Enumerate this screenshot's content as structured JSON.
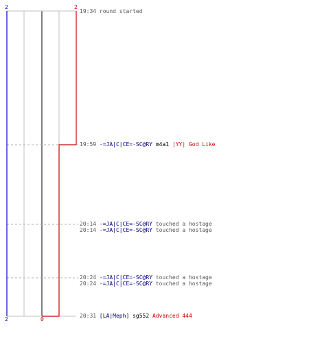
{
  "colors": {
    "team_blue": "#0000cc",
    "team_red": "#cc0000",
    "grid": "#c0c0c0",
    "grid_dark": "#555555",
    "text": "#555555",
    "name_blue": "#000080"
  },
  "scores": {
    "top_left": "2",
    "top_right": "2",
    "bottom_left": "2",
    "bottom_mid": "0"
  },
  "events": [
    {
      "parts": [
        {
          "text": "19:34 ",
          "style": "time"
        },
        {
          "text": "round started",
          "style": "plain"
        }
      ]
    },
    {
      "parts": [
        {
          "text": "19:59 ",
          "style": "time"
        },
        {
          "text": "-=JA|C|CE=-SC@RY",
          "style": "blue"
        },
        {
          "text": " m4a1 ",
          "style": "dark"
        },
        {
          "text": "|YY| God Like",
          "style": "red"
        }
      ]
    },
    {
      "parts": [
        {
          "text": "20:14 ",
          "style": "time"
        },
        {
          "text": "-=JA|C|CE=-SC@RY",
          "style": "blue"
        },
        {
          "text": " touched a hostage",
          "style": "plain"
        }
      ]
    },
    {
      "parts": [
        {
          "text": "20:14 ",
          "style": "time"
        },
        {
          "text": "-=JA|C|CE=-SC@RY",
          "style": "blue"
        },
        {
          "text": " touched a hostage",
          "style": "plain"
        }
      ]
    },
    {
      "parts": [
        {
          "text": "20:24 ",
          "style": "time"
        },
        {
          "text": "-=JA|C|CE=-SC@RY",
          "style": "blue"
        },
        {
          "text": " touched a hostage",
          "style": "plain"
        }
      ]
    },
    {
      "parts": [
        {
          "text": "20:24 ",
          "style": "time"
        },
        {
          "text": "-=JA|C|CE=-SC@RY",
          "style": "blue"
        },
        {
          "text": " touched a hostage",
          "style": "plain"
        }
      ]
    },
    {
      "parts": [
        {
          "text": "20:31 ",
          "style": "time"
        },
        {
          "text": "[LA|Meph]",
          "style": "blue"
        },
        {
          "text": " sg552 ",
          "style": "dark"
        },
        {
          "text": "Advanced 444",
          "style": "red"
        }
      ]
    }
  ]
}
